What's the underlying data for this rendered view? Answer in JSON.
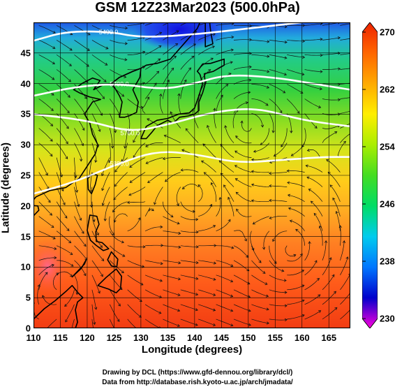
{
  "title": "GSM 12Z23Mar2023 (500.0hPa)",
  "chart_data": {
    "type": "heatmap",
    "title": "GSM 12Z23Mar2023 (500.0hPa)",
    "xlabel": "Longitude (degrees)",
    "ylabel": "Latitude  (degrees)",
    "xlim": [
      110,
      169
    ],
    "ylim": [
      0,
      50
    ],
    "x_ticks": [
      "110",
      "115",
      "120",
      "125",
      "130",
      "135",
      "140",
      "145",
      "150",
      "155",
      "160",
      "165"
    ],
    "y_ticks": [
      "0",
      "5",
      "10",
      "15",
      "20",
      "25",
      "30",
      "35",
      "40",
      "45"
    ],
    "colorbar": {
      "min": 230,
      "max": 270,
      "ticks": [
        "230",
        "238",
        "246",
        "254",
        "262",
        "270"
      ],
      "colors": [
        "#ff00dd",
        "#0000cc",
        "#0077ff",
        "#00ccee",
        "#00dd66",
        "#44dd22",
        "#aaee00",
        "#ffee00",
        "#ffaa00",
        "#ff6600",
        "#ee2200"
      ]
    },
    "contours": [
      {
        "label": "5400.0",
        "points": [
          [
            110,
            47
          ],
          [
            116,
            48.5
          ],
          [
            124,
            48.5
          ],
          [
            130,
            47.5
          ],
          [
            140,
            48
          ],
          [
            150,
            49
          ],
          [
            160,
            50
          ]
        ]
      },
      {
        "label": "5700.0",
        "points": [
          [
            110,
            38
          ],
          [
            118,
            39.5
          ],
          [
            126,
            40
          ],
          [
            134,
            39
          ],
          [
            140,
            40
          ],
          [
            146,
            41.5
          ],
          [
            155,
            41
          ],
          [
            162,
            40
          ],
          [
            169,
            39
          ]
        ]
      },
      {
        "label": "5760.0",
        "points": [
          [
            110,
            35
          ],
          [
            120,
            34
          ],
          [
            128,
            32
          ],
          [
            136,
            33.5
          ],
          [
            144,
            35.5
          ],
          [
            152,
            36
          ],
          [
            160,
            34
          ],
          [
            169,
            33
          ]
        ]
      },
      {
        "label": "5880.0",
        "points": [
          [
            110,
            22
          ],
          [
            118,
            24
          ],
          [
            126,
            27
          ],
          [
            133,
            29
          ],
          [
            140,
            28.5
          ],
          [
            148,
            27
          ],
          [
            156,
            27.5
          ],
          [
            164,
            28
          ],
          [
            169,
            28
          ]
        ]
      }
    ],
    "land": [
      {
        "name": "Japan",
        "points": [
          [
            130,
            31
          ],
          [
            131,
            33
          ],
          [
            133,
            34
          ],
          [
            135,
            34.3
          ],
          [
            137,
            35
          ],
          [
            139,
            35.2
          ],
          [
            140,
            36
          ],
          [
            140.8,
            38
          ],
          [
            141.5,
            40
          ],
          [
            141,
            41.5
          ],
          [
            140.5,
            42
          ],
          [
            141.5,
            43.2
          ],
          [
            143,
            43.3
          ],
          [
            145.5,
            44
          ],
          [
            145.5,
            43
          ],
          [
            143.5,
            42
          ],
          [
            141.8,
            41.6
          ],
          [
            142,
            40
          ],
          [
            141.5,
            38.5
          ],
          [
            140.8,
            37
          ],
          [
            140.8,
            35.6
          ],
          [
            140,
            35
          ],
          [
            138.8,
            34.7
          ],
          [
            137.2,
            34.5
          ],
          [
            136,
            33.5
          ],
          [
            135,
            34
          ],
          [
            133,
            33.1
          ],
          [
            132,
            32
          ],
          [
            131,
            31
          ],
          [
            130,
            31
          ]
        ]
      },
      {
        "name": "Korea",
        "points": [
          [
            126,
            34.5
          ],
          [
            126.5,
            37
          ],
          [
            126,
            38
          ],
          [
            125,
            39.5
          ],
          [
            124.5,
            40
          ],
          [
            126,
            41
          ],
          [
            128.5,
            42
          ],
          [
            130,
            42.5
          ],
          [
            129.8,
            41
          ],
          [
            128.5,
            39
          ],
          [
            129.5,
            37
          ],
          [
            129.2,
            35.3
          ],
          [
            128,
            34.8
          ],
          [
            127,
            34.5
          ],
          [
            126,
            34.5
          ]
        ]
      },
      {
        "name": "Asia",
        "points": [
          [
            110,
            21
          ],
          [
            110.5,
            21.5
          ],
          [
            113,
            22.5
          ],
          [
            116,
            23
          ],
          [
            118.5,
            24.5
          ],
          [
            120,
            26.5
          ],
          [
            121.5,
            28.5
          ],
          [
            122,
            30
          ],
          [
            121,
            31.7
          ],
          [
            120.5,
            33.5
          ],
          [
            119.5,
            35
          ],
          [
            121,
            37
          ],
          [
            122.5,
            37.4
          ],
          [
            120.5,
            37.8
          ],
          [
            118.5,
            38.5
          ],
          [
            117.5,
            39
          ],
          [
            119,
            40
          ],
          [
            121,
            40.9
          ],
          [
            122.4,
            40.5
          ],
          [
            121.2,
            39
          ],
          [
            123,
            39.8
          ],
          [
            124.5,
            40
          ],
          [
            126,
            41
          ],
          [
            128.5,
            42
          ],
          [
            130,
            42.5
          ],
          [
            131,
            43
          ],
          [
            133,
            43.3
          ],
          [
            135.5,
            44
          ],
          [
            138,
            46.5
          ],
          [
            140.5,
            49
          ],
          [
            141,
            50
          ],
          [
            110,
            50
          ],
          [
            110,
            21
          ]
        ]
      },
      {
        "name": "Taiwan",
        "points": [
          [
            120.2,
            22.7
          ],
          [
            120.1,
            24.5
          ],
          [
            121,
            25.3
          ],
          [
            121.9,
            25
          ],
          [
            121.5,
            23.5
          ],
          [
            120.8,
            22
          ],
          [
            120.2,
            22.7
          ]
        ]
      },
      {
        "name": "Hainan",
        "points": [
          [
            108.8,
            19
          ],
          [
            109.5,
            20.1
          ],
          [
            110.8,
            20
          ],
          [
            111,
            19.3
          ],
          [
            109.8,
            18.2
          ],
          [
            108.8,
            19
          ]
        ]
      },
      {
        "name": "Luzon",
        "points": [
          [
            120.5,
            18.5
          ],
          [
            121.8,
            18.3
          ],
          [
            122.2,
            17
          ],
          [
            121.6,
            15.8
          ],
          [
            121.7,
            14.2
          ],
          [
            122.8,
            14
          ],
          [
            124,
            13
          ],
          [
            123,
            12.7
          ],
          [
            121.6,
            13.6
          ],
          [
            120.6,
            14.4
          ],
          [
            120,
            16
          ],
          [
            120.4,
            18
          ],
          [
            120.5,
            18.5
          ]
        ]
      },
      {
        "name": "Mindanao",
        "points": [
          [
            122,
            7
          ],
          [
            123.5,
            8.3
          ],
          [
            125.4,
            9.7
          ],
          [
            126.4,
            8.5
          ],
          [
            126.2,
            6.5
          ],
          [
            125.4,
            5.8
          ],
          [
            124,
            6.4
          ],
          [
            122,
            7
          ]
        ]
      },
      {
        "name": "Visayas",
        "points": [
          [
            123.8,
            11.2
          ],
          [
            124.5,
            12.5
          ],
          [
            125.7,
            11.3
          ],
          [
            125.5,
            10
          ],
          [
            124.5,
            10.2
          ],
          [
            123.8,
            11.2
          ]
        ]
      },
      {
        "name": "Palawan",
        "points": [
          [
            117.2,
            8.4
          ],
          [
            119.5,
            10.5
          ],
          [
            119.8,
            11.2
          ],
          [
            118.9,
            9.8
          ],
          [
            117.2,
            8.4
          ]
        ]
      },
      {
        "name": "Borneo",
        "points": [
          [
            110,
            1.5
          ],
          [
            112,
            3.2
          ],
          [
            114,
            4.5
          ],
          [
            116,
            6
          ],
          [
            117.2,
            7
          ],
          [
            118.3,
            5.8
          ],
          [
            119.2,
            5
          ],
          [
            118.2,
            4.3
          ],
          [
            117.8,
            3
          ],
          [
            118.2,
            1
          ],
          [
            117.8,
            0
          ],
          [
            110,
            0
          ],
          [
            110,
            1.5
          ]
        ]
      },
      {
        "name": "Sakhalin",
        "points": [
          [
            142,
            46
          ],
          [
            143.4,
            46.5
          ],
          [
            143,
            48.5
          ],
          [
            142.8,
            50
          ],
          [
            142,
            50
          ],
          [
            142,
            48
          ],
          [
            142,
            46
          ]
        ]
      }
    ]
  }
}
